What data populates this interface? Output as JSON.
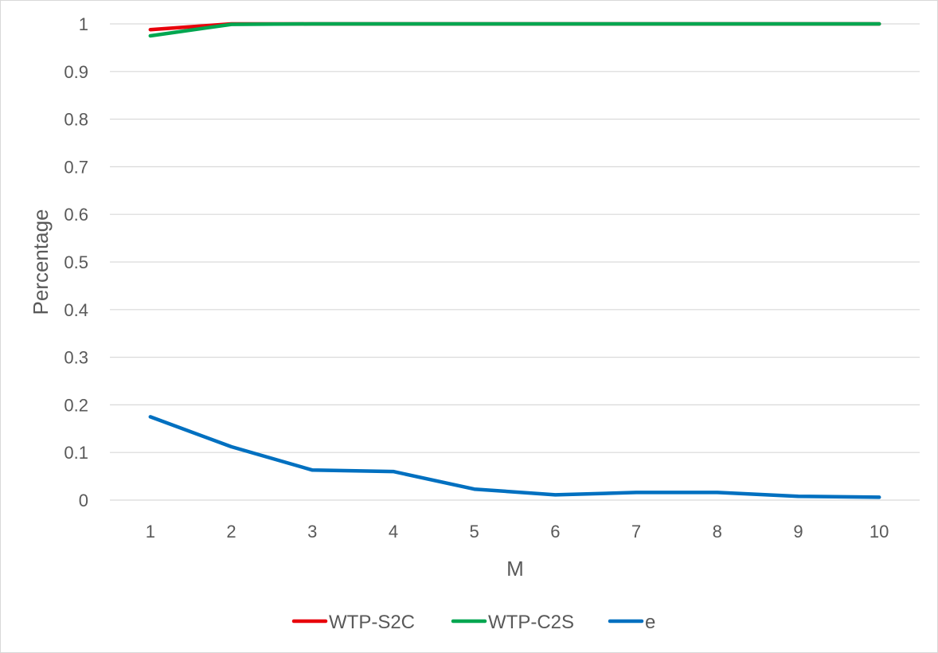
{
  "chart_data": {
    "type": "line",
    "title": "",
    "xlabel": "M",
    "ylabel": "Percentage",
    "categories": [
      "1",
      "2",
      "3",
      "4",
      "5",
      "6",
      "7",
      "8",
      "9",
      "10"
    ],
    "ylim": [
      0,
      1
    ],
    "yticks": [
      "0",
      "0.1",
      "0.2",
      "0.3",
      "0.4",
      "0.5",
      "0.6",
      "0.7",
      "0.8",
      "0.9",
      "1"
    ],
    "grid": true,
    "legend_position": "bottom",
    "series": [
      {
        "name": "WTP-S2C",
        "color": "#e8000b",
        "values": [
          0.988,
          1.0,
          1.0,
          1.0,
          1.0,
          1.0,
          1.0,
          1.0,
          1.0,
          1.0
        ]
      },
      {
        "name": "WTP-C2S",
        "color": "#00a650",
        "values": [
          0.975,
          0.999,
          1.0,
          1.0,
          1.0,
          1.0,
          1.0,
          1.0,
          1.0,
          1.0
        ]
      },
      {
        "name": "e",
        "color": "#0070c0",
        "values": [
          0.175,
          0.112,
          0.063,
          0.06,
          0.023,
          0.011,
          0.016,
          0.016,
          0.008,
          0.006
        ]
      }
    ]
  }
}
